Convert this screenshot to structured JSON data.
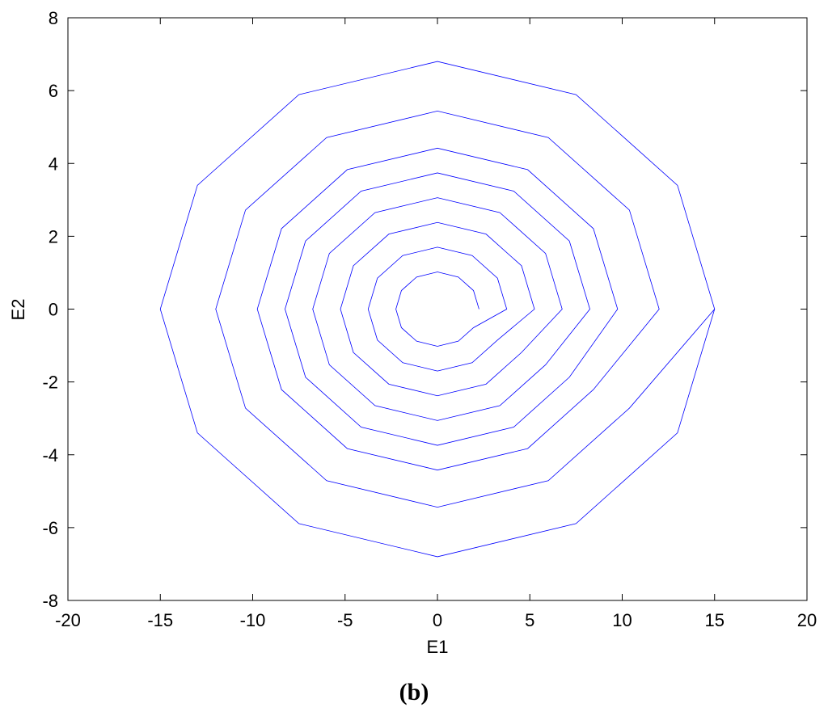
{
  "chart_data": {
    "type": "line",
    "xlabel": "E1",
    "ylabel": "E2",
    "caption": "(b)",
    "color": "#0000ff",
    "xlim": [
      -20,
      20
    ],
    "ylim": [
      -8,
      8
    ],
    "xticks": [
      -20,
      -15,
      -10,
      -5,
      0,
      5,
      10,
      15,
      20
    ],
    "yticks": [
      -8,
      -6,
      -4,
      -2,
      0,
      2,
      4,
      6,
      8
    ],
    "x": [
      2.25,
      1.95,
      1.13,
      0,
      -1.13,
      -1.95,
      -2.25,
      -1.95,
      -1.13,
      0,
      1.13,
      1.95,
      3.75,
      3.25,
      1.88,
      0,
      -1.88,
      -3.25,
      -3.75,
      -3.25,
      -1.88,
      0,
      1.88,
      3.25,
      5.25,
      4.55,
      2.63,
      0,
      -2.63,
      -4.55,
      -5.25,
      -4.55,
      -2.63,
      0,
      2.63,
      4.55,
      6.75,
      5.85,
      3.38,
      0,
      -3.38,
      -5.85,
      -6.75,
      -5.85,
      -3.38,
      0,
      3.38,
      5.85,
      8.25,
      7.14,
      4.13,
      0,
      -4.13,
      -7.14,
      -8.25,
      -7.14,
      -4.13,
      0,
      4.13,
      7.14,
      9.75,
      8.44,
      4.88,
      0,
      -4.88,
      -8.44,
      -9.75,
      -8.44,
      -4.88,
      0,
      4.88,
      8.44,
      12,
      10.39,
      6,
      0,
      -6,
      -10.39,
      -12,
      -10.39,
      -6,
      0,
      6,
      10.39,
      15,
      12.99,
      7.5,
      0,
      -7.5,
      -12.99,
      -15,
      -12.99,
      -7.5,
      0,
      7.5,
      12.99,
      15
    ],
    "values": [
      0,
      0.51,
      0.88,
      1.02,
      0.88,
      0.51,
      0,
      -0.51,
      -0.88,
      -1.02,
      -0.88,
      -0.51,
      0,
      0.85,
      1.47,
      1.7,
      1.47,
      0.85,
      0,
      -0.85,
      -1.47,
      -1.7,
      -1.47,
      -0.85,
      0,
      1.19,
      2.06,
      2.38,
      2.06,
      1.19,
      0,
      -1.19,
      -2.06,
      -2.38,
      -2.06,
      -1.19,
      0,
      1.53,
      2.65,
      3.06,
      2.65,
      1.53,
      0,
      -1.53,
      -2.65,
      -3.06,
      -2.65,
      -1.53,
      0,
      1.87,
      3.24,
      3.74,
      3.24,
      1.87,
      0,
      -1.87,
      -3.24,
      -3.74,
      -3.24,
      -1.87,
      0,
      2.21,
      3.83,
      4.42,
      3.83,
      2.21,
      0,
      -2.21,
      -3.83,
      -4.42,
      -3.83,
      -2.21,
      0,
      2.72,
      4.71,
      5.44,
      4.71,
      2.72,
      0,
      -2.72,
      -4.71,
      -5.44,
      -4.71,
      -2.72,
      0,
      3.4,
      5.89,
      6.8,
      5.89,
      3.4,
      0,
      -3.4,
      -5.89,
      -6.8,
      -5.89,
      -3.4,
      0
    ]
  }
}
